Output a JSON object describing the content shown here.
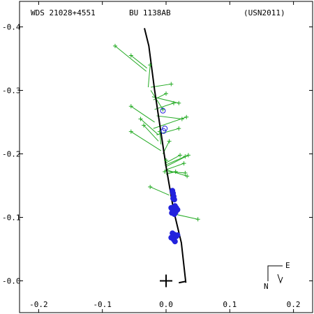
{
  "header": {
    "left": "WDS 21028+4551",
    "center": "BU 1138AB",
    "right": "(USN2011)"
  },
  "compass": {
    "east_label": "E",
    "north_label": "N"
  },
  "colors": {
    "measure_plus": "#22aa22",
    "residual_line": "#22aa22",
    "speckle_dot": "#2222dd",
    "open_circle": "#2222dd",
    "orbit": "#000000",
    "axes": "#000000"
  },
  "chart_data": {
    "type": "scatter",
    "xlim": [
      0.23,
      -0.23
    ],
    "ylim": [
      -0.05,
      0.405
    ],
    "xticks": [
      -0.2,
      -0.1,
      0.0,
      0.1,
      0.2
    ],
    "xtick_labels": [
      "-0.2",
      "-0.1",
      "0.0",
      "0.1",
      "0.2"
    ],
    "yticks": [
      -0.4,
      -0.3,
      -0.2,
      -0.1,
      0.0
    ],
    "ytick_labels": [
      "-0.4",
      "-0.3",
      "-0.2",
      "-0.1",
      "-0.0"
    ],
    "orbit_path": [
      [
        0.034,
        0.398
      ],
      [
        0.027,
        0.37
      ],
      [
        0.018,
        0.3
      ],
      [
        0.0,
        0.18
      ],
      [
        -0.012,
        0.11
      ],
      [
        -0.024,
        0.06
      ],
      [
        -0.031,
        -0.003
      ]
    ],
    "node_line": [
      [
        -0.02,
        -0.003
      ],
      [
        -0.03,
        -0.001
      ]
    ],
    "measures": [
      {
        "p": [
          0.08,
          0.37
        ],
        "o": [
          0.031,
          0.33
        ]
      },
      {
        "p": [
          0.055,
          0.355
        ],
        "o": [
          0.03,
          0.335
        ]
      },
      {
        "p": [
          0.025,
          0.34
        ],
        "o": [
          0.028,
          0.305
        ]
      },
      {
        "p": [
          0.005,
          0.27
        ],
        "o": [
          0.024,
          0.3
        ]
      },
      {
        "p": [
          -0.012,
          0.28
        ],
        "o": [
          0.018,
          0.27
        ]
      },
      {
        "p": [
          -0.025,
          0.255
        ],
        "o": [
          0.015,
          0.26
        ]
      },
      {
        "p": [
          0.055,
          0.275
        ],
        "o": [
          0.018,
          0.25
        ]
      },
      {
        "p": [
          0.04,
          0.255
        ],
        "o": [
          0.012,
          0.23
        ]
      },
      {
        "p": [
          0.035,
          0.245
        ],
        "o": [
          0.012,
          0.22
        ]
      },
      {
        "p": [
          0.01,
          0.235
        ],
        "o": [
          0.008,
          0.215
        ]
      },
      {
        "p": [
          0.055,
          0.235
        ],
        "o": [
          0.008,
          0.205
        ]
      },
      {
        "p": [
          -0.032,
          0.258
        ],
        "o": [
          0.02,
          0.24
        ]
      },
      {
        "p": [
          -0.005,
          0.22
        ],
        "o": [
          0.005,
          0.2
        ]
      },
      {
        "p": [
          -0.02,
          0.24
        ],
        "o": [
          0.015,
          0.23
        ]
      },
      {
        "p": [
          -0.02,
          0.28
        ],
        "o": [
          0.022,
          0.29
        ]
      },
      {
        "p": [
          -0.008,
          0.31
        ],
        "o": [
          0.024,
          0.305
        ]
      },
      {
        "p": [
          0.0,
          0.295
        ],
        "o": [
          0.02,
          0.285
        ]
      },
      {
        "p": [
          -0.035,
          0.198
        ],
        "o": [
          0.0,
          0.18
        ]
      },
      {
        "p": [
          -0.022,
          0.198
        ],
        "o": [
          0.002,
          0.185
        ]
      },
      {
        "p": [
          -0.03,
          0.196
        ],
        "o": [
          0.002,
          0.182
        ]
      },
      {
        "p": [
          -0.028,
          0.185
        ],
        "o": [
          0.0,
          0.175
        ]
      },
      {
        "p": [
          -0.015,
          0.172
        ],
        "o": [
          0.0,
          0.168
        ]
      },
      {
        "p": [
          0.002,
          0.172
        ],
        "o": [
          0.0,
          0.175
        ]
      },
      {
        "p": [
          0.0,
          0.19
        ],
        "o": [
          0.002,
          0.185
        ]
      },
      {
        "p": [
          0.025,
          0.148
        ],
        "o": [
          -0.005,
          0.135
        ]
      },
      {
        "p": [
          -0.05,
          0.097
        ],
        "o": [
          -0.014,
          0.105
        ]
      },
      {
        "p": [
          -0.033,
          0.165
        ],
        "o": [
          0.0,
          0.175
        ]
      },
      {
        "p": [
          -0.03,
          0.17
        ],
        "o": [
          -0.003,
          0.172
        ]
      }
    ],
    "speckle": [
      [
        -0.01,
        0.142
      ],
      [
        -0.011,
        0.138
      ],
      [
        -0.012,
        0.133
      ],
      [
        -0.013,
        0.128
      ],
      [
        -0.011,
        0.13
      ],
      [
        -0.014,
        0.118
      ],
      [
        -0.008,
        0.115
      ],
      [
        -0.01,
        0.112
      ],
      [
        -0.018,
        0.112
      ],
      [
        -0.015,
        0.108
      ],
      [
        -0.013,
        0.105
      ],
      [
        -0.012,
        0.11
      ],
      [
        -0.009,
        0.107
      ],
      [
        -0.016,
        0.115
      ],
      [
        -0.013,
        0.073
      ],
      [
        -0.016,
        0.07
      ],
      [
        -0.008,
        0.068
      ],
      [
        -0.012,
        0.065
      ],
      [
        -0.014,
        0.062
      ],
      [
        -0.01,
        0.075
      ],
      [
        -0.018,
        0.072
      ]
    ],
    "open_circles": [
      [
        0.005,
        0.268
      ],
      [
        0.002,
        0.24
      ],
      [
        0.004,
        0.236
      ]
    ]
  }
}
